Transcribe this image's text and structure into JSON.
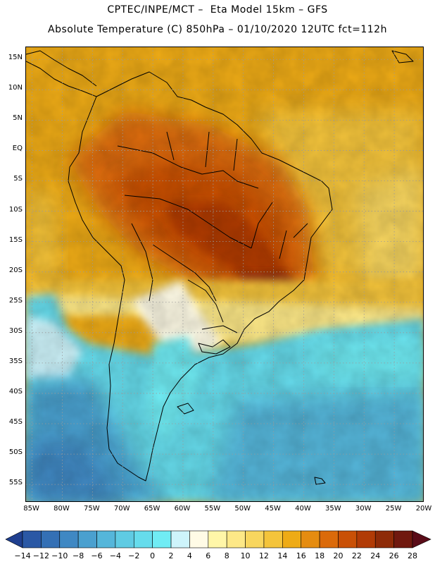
{
  "header": {
    "title_line1": "CPTEC/INPE/MCT –  Eta Model 15km – GFS",
    "title_line2": "Absolute Temperature (C) 850hPa – 01/10/2020 12UTC fct=112h"
  },
  "map": {
    "lat_labels": [
      "15N",
      "10N",
      "5N",
      "EQ",
      "5S",
      "10S",
      "15S",
      "20S",
      "25S",
      "30S",
      "35S",
      "40S",
      "45S",
      "50S",
      "55S"
    ],
    "lat_values": [
      15,
      10,
      5,
      0,
      -5,
      -10,
      -15,
      -20,
      -25,
      -30,
      -35,
      -40,
      -45,
      -50,
      -55
    ],
    "lon_labels": [
      "85W",
      "80W",
      "75W",
      "70W",
      "65W",
      "60W",
      "55W",
      "50W",
      "45W",
      "40W",
      "35W",
      "30W",
      "25W",
      "20W"
    ],
    "lon_values": [
      -85,
      -80,
      -75,
      -70,
      -65,
      -60,
      -55,
      -50,
      -45,
      -40,
      -35,
      -30,
      -25,
      -20
    ],
    "lon_range": [
      -86,
      -20
    ],
    "lat_range": [
      -58,
      17
    ],
    "grid": "dotted"
  },
  "colorbar": {
    "labels": [
      "-14",
      "-12",
      "-10",
      "-8",
      "-6",
      "-4",
      "-2",
      "0",
      "2",
      "4",
      "6",
      "8",
      "10",
      "12",
      "14",
      "16",
      "18",
      "20",
      "22",
      "24",
      "26",
      "28"
    ],
    "colors": [
      "#1f3f8f",
      "#2a58a5",
      "#3470b5",
      "#3f88c3",
      "#4aa0cf",
      "#55b6da",
      "#5fcbe3",
      "#66dcec",
      "#70ecf4",
      "#cef4fb",
      "#fffbe6",
      "#fff6a8",
      "#fde887",
      "#f8d65e",
      "#f4c43b",
      "#eeab16",
      "#e58c10",
      "#db6a0a",
      "#c95006",
      "#b13b06",
      "#8e2b08",
      "#70190f",
      "#5a0c18"
    ]
  }
}
